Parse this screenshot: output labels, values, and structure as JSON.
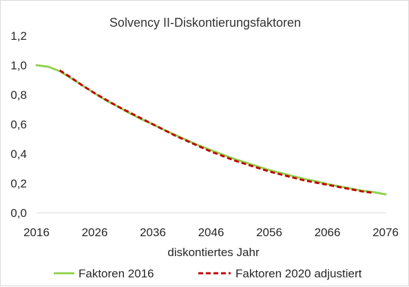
{
  "chart_data": {
    "type": "line",
    "title": "Solvency II-Diskontierungsfaktoren",
    "xlabel": "diskontiertes Jahr",
    "ylabel": "",
    "xlim": [
      2016,
      2076
    ],
    "ylim": [
      0,
      1.2
    ],
    "x_ticks": [
      "2016",
      "2026",
      "2036",
      "2046",
      "2056",
      "2066",
      "2076"
    ],
    "y_ticks": [
      "0,0",
      "0,2",
      "0,4",
      "0,6",
      "0,8",
      "1,0",
      "1,2"
    ],
    "grid": false,
    "legend_position": "bottom",
    "series": [
      {
        "name": "Faktoren 2016",
        "color": "#92d050",
        "style": "solid",
        "x": [
          2016,
          2018,
          2020,
          2022,
          2024,
          2026,
          2028,
          2030,
          2032,
          2034,
          2036,
          2038,
          2040,
          2042,
          2044,
          2046,
          2048,
          2050,
          2052,
          2054,
          2056,
          2058,
          2060,
          2062,
          2064,
          2066,
          2068,
          2070,
          2072,
          2074,
          2076
        ],
        "y": [
          1.0,
          0.99,
          0.96,
          0.91,
          0.86,
          0.81,
          0.76,
          0.72,
          0.675,
          0.635,
          0.6,
          0.56,
          0.525,
          0.49,
          0.455,
          0.425,
          0.395,
          0.365,
          0.34,
          0.315,
          0.29,
          0.27,
          0.25,
          0.23,
          0.215,
          0.195,
          0.18,
          0.165,
          0.15,
          0.14,
          0.125
        ]
      },
      {
        "name": "Faktoren 2020 adjustiert",
        "color": "#c00000",
        "style": "dashed",
        "x": [
          2020,
          2022,
          2024,
          2026,
          2028,
          2030,
          2032,
          2034,
          2036,
          2038,
          2040,
          2042,
          2044,
          2046,
          2048,
          2050,
          2052,
          2054,
          2056,
          2058,
          2060,
          2062,
          2064,
          2066,
          2068,
          2070,
          2072,
          2074
        ],
        "y": [
          0.965,
          0.915,
          0.86,
          0.81,
          0.765,
          0.72,
          0.68,
          0.64,
          0.6,
          0.56,
          0.52,
          0.485,
          0.45,
          0.415,
          0.385,
          0.355,
          0.33,
          0.305,
          0.28,
          0.26,
          0.24,
          0.22,
          0.205,
          0.19,
          0.175,
          0.16,
          0.145,
          0.135
        ]
      }
    ]
  }
}
